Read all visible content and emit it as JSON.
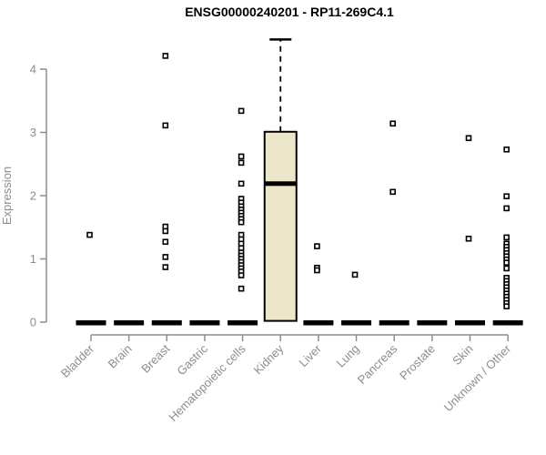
{
  "chart_data": {
    "type": "boxplot",
    "title": "ENSG00000240201 - RP11-269C4.1",
    "ylabel": "Expression",
    "xlabel": "",
    "ylim": [
      0,
      4.6
    ],
    "yticks": [
      0,
      1,
      2,
      3,
      4
    ],
    "grid": false,
    "legend": false,
    "colors": {
      "box_fill": "#ECE7CB",
      "box_border": "#000000",
      "axis": "#8D8D8D",
      "labels": "#8D8D8D",
      "title": "#000000",
      "points": "#000000"
    },
    "categories": [
      "Bladder",
      "Brain",
      "Breast",
      "Gastric",
      "Hematopoietic cells",
      "Kidney",
      "Liver",
      "Lung",
      "Pancreas",
      "Prostate",
      "Skin",
      "Unknown / Other"
    ],
    "series": [
      {
        "category": "Bladder",
        "q1": 0,
        "median": 0,
        "q3": 0,
        "whisker_low": 0,
        "whisker_high": 0,
        "points": [
          1.38
        ]
      },
      {
        "category": "Brain",
        "q1": 0,
        "median": 0,
        "q3": 0,
        "whisker_low": 0,
        "whisker_high": 0,
        "points": []
      },
      {
        "category": "Breast",
        "q1": 0,
        "median": 0,
        "q3": 0,
        "whisker_low": 0,
        "whisker_high": 0,
        "points": [
          4.21,
          3.11,
          1.51,
          1.44,
          1.27,
          1.03,
          0.87
        ]
      },
      {
        "category": "Gastric",
        "q1": 0,
        "median": 0,
        "q3": 0,
        "whisker_low": 0,
        "whisker_high": 0,
        "points": []
      },
      {
        "category": "Hematopoietic cells",
        "q1": 0,
        "median": 0,
        "q3": 0,
        "whisker_low": 0,
        "whisker_high": 0,
        "points": [
          3.34,
          2.62,
          2.52,
          2.19,
          1.95,
          1.89,
          1.83,
          1.78,
          1.73,
          1.68,
          1.63,
          1.58,
          1.38,
          1.31,
          1.24,
          1.17,
          1.1,
          1.05,
          1.0,
          0.95,
          0.9,
          0.85,
          0.8,
          0.74,
          0.53
        ]
      },
      {
        "category": "Kidney",
        "q1": 0.02,
        "median": 2.19,
        "q3": 3.01,
        "whisker_low": 0.02,
        "whisker_high": 4.47,
        "points": []
      },
      {
        "category": "Liver",
        "q1": 0,
        "median": 0,
        "q3": 0,
        "whisker_low": 0,
        "whisker_high": 0,
        "points": [
          1.2,
          0.86,
          0.82
        ]
      },
      {
        "category": "Lung",
        "q1": 0,
        "median": 0,
        "q3": 0,
        "whisker_low": 0,
        "whisker_high": 0,
        "points": [
          0.75
        ]
      },
      {
        "category": "Pancreas",
        "q1": 0,
        "median": 0,
        "q3": 0,
        "whisker_low": 0,
        "whisker_high": 0,
        "points": [
          3.14,
          2.06
        ]
      },
      {
        "category": "Prostate",
        "q1": 0,
        "median": 0,
        "q3": 0,
        "whisker_low": 0,
        "whisker_high": 0,
        "points": []
      },
      {
        "category": "Skin",
        "q1": 0,
        "median": 0,
        "q3": 0,
        "whisker_low": 0,
        "whisker_high": 0,
        "points": [
          2.91,
          1.32
        ]
      },
      {
        "category": "Unknown / Other",
        "q1": 0,
        "median": 0,
        "q3": 0,
        "whisker_low": 0,
        "whisker_high": 0,
        "points": [
          2.73,
          1.99,
          1.8,
          1.34,
          1.24,
          1.19,
          1.14,
          1.09,
          1.04,
          0.99,
          0.94,
          0.85,
          0.7,
          0.65,
          0.6,
          0.55,
          0.5,
          0.45,
          0.4,
          0.35,
          0.3,
          0.25
        ]
      }
    ]
  }
}
